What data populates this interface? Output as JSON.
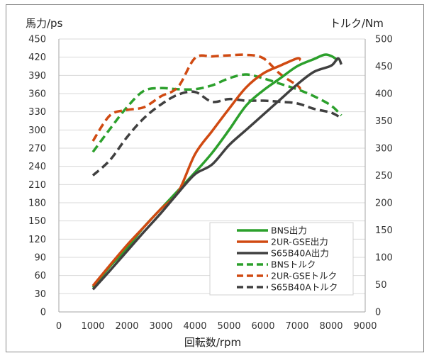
{
  "chart_data": {
    "type": "line",
    "title": "",
    "xlabel": "回転数/rpm",
    "ylabel": "馬力/ps",
    "y2label": "トルク/Nm",
    "xlim": [
      0,
      9000
    ],
    "ylim": [
      0,
      450
    ],
    "y2lim": [
      0,
      500
    ],
    "x_ticks": [
      "0",
      "1000",
      "2000",
      "3000",
      "4000",
      "5000",
      "6000",
      "7000",
      "8000",
      "9000"
    ],
    "y_ticks": [
      "0",
      "30",
      "60",
      "90",
      "120",
      "150",
      "180",
      "210",
      "240",
      "270",
      "300",
      "330",
      "360",
      "390",
      "420",
      "450"
    ],
    "y2_ticks": [
      "0",
      "50",
      "100",
      "150",
      "200",
      "250",
      "300",
      "350",
      "400",
      "450",
      "500"
    ],
    "grid": "horizontal",
    "legend_position": "bottom-right",
    "series": [
      {
        "name": "BNS出力",
        "axis": "left",
        "color": "#2ca02c",
        "dash": "solid",
        "x": [
          1000,
          1500,
          2000,
          2500,
          3000,
          3500,
          4000,
          4500,
          5000,
          5500,
          6000,
          6500,
          7000,
          7500,
          7800,
          8000,
          8200
        ],
        "y": [
          40,
          75,
          105,
          140,
          170,
          200,
          230,
          262,
          300,
          340,
          365,
          385,
          405,
          417,
          424,
          422,
          415
        ]
      },
      {
        "name": "2UR-GSE出力",
        "axis": "left",
        "color": "#d04a12",
        "dash": "solid",
        "x": [
          1000,
          1500,
          2000,
          2500,
          3000,
          3500,
          4000,
          4500,
          5000,
          5500,
          6000,
          6500,
          7000,
          7100
        ],
        "y": [
          43,
          77,
          110,
          140,
          170,
          197,
          260,
          298,
          335,
          370,
          393,
          406,
          418,
          415
        ]
      },
      {
        "name": "S65B40A出力",
        "axis": "left",
        "color": "#404040",
        "dash": "solid",
        "x": [
          1000,
          1500,
          2000,
          2500,
          3000,
          3500,
          4000,
          4500,
          5000,
          5500,
          6000,
          6500,
          7000,
          7500,
          8000,
          8200,
          8300
        ],
        "y": [
          37,
          68,
          100,
          132,
          163,
          196,
          227,
          243,
          275,
          300,
          325,
          350,
          375,
          396,
          406,
          418,
          408
        ]
      },
      {
        "name": "BNSトルク",
        "axis": "right",
        "color": "#2ca02c",
        "dash": "dashed",
        "x": [
          1000,
          1500,
          2000,
          2500,
          3000,
          3500,
          4000,
          4500,
          5000,
          5500,
          6000,
          6500,
          7000,
          7500,
          8000,
          8300
        ],
        "y": [
          293,
          335,
          375,
          405,
          410,
          408,
          408,
          415,
          428,
          435,
          428,
          418,
          408,
          395,
          378,
          360
        ]
      },
      {
        "name": "2UR-GSEトルク",
        "axis": "right",
        "color": "#d04a12",
        "dash": "dashed",
        "x": [
          1000,
          1500,
          2000,
          2500,
          3000,
          3500,
          4000,
          4500,
          5000,
          5500,
          6000,
          6500,
          7000,
          7100
        ],
        "y": [
          313,
          360,
          370,
          375,
          395,
          412,
          465,
          468,
          470,
          471,
          465,
          436,
          415,
          408
        ]
      },
      {
        "name": "S65B40Aトルク",
        "axis": "right",
        "color": "#404040",
        "dash": "dashed",
        "x": [
          1000,
          1500,
          2000,
          2500,
          3000,
          3500,
          4000,
          4500,
          5000,
          5500,
          6000,
          6500,
          7000,
          7500,
          8000,
          8300
        ],
        "y": [
          250,
          278,
          320,
          355,
          380,
          398,
          403,
          385,
          390,
          387,
          387,
          385,
          382,
          372,
          365,
          355
        ]
      }
    ]
  }
}
